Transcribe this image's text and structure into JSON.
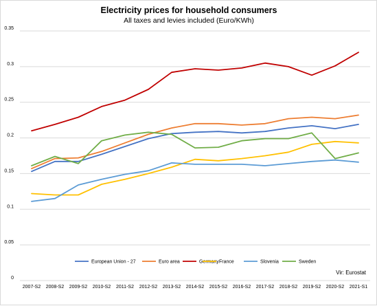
{
  "chart_data": {
    "type": "line",
    "title": "Electricity prices for household consumers",
    "subtitle": "All taxes and levies included (Euro/KWh)",
    "x": [
      "2007-S2",
      "2008-S2",
      "2009-S2",
      "2010-S2",
      "2011-S2",
      "2012-S2",
      "2013-S2",
      "2014-S2",
      "2015-S2",
      "2016-S2",
      "2017-S2",
      "2018-S2",
      "2019-S2",
      "2020-S2",
      "2021-S1"
    ],
    "y_ticks": [
      "0",
      "0.05",
      "0.1",
      "0.15",
      "0.2",
      "0.25",
      "0.3",
      "0.35"
    ],
    "ylim": [
      0,
      0.35
    ],
    "grid": true,
    "legend_position": "bottom",
    "source": "Vir: Eurostat",
    "series": [
      {
        "name": "European Union - 27",
        "color": "#4472c4",
        "values": [
          0.153,
          0.167,
          0.167,
          0.177,
          0.188,
          0.199,
          0.206,
          0.208,
          0.209,
          0.207,
          0.209,
          0.214,
          0.217,
          0.213,
          0.219
        ]
      },
      {
        "name": "Euro area",
        "color": "#ed7d31",
        "values": [
          0.157,
          0.171,
          0.172,
          0.181,
          0.193,
          0.205,
          0.214,
          0.22,
          0.22,
          0.218,
          0.22,
          0.227,
          0.229,
          0.227,
          0.232
        ]
      },
      {
        "name": "Germany",
        "color": "#c00000",
        "values": [
          0.21,
          0.219,
          0.229,
          0.244,
          0.253,
          0.268,
          0.292,
          0.297,
          0.295,
          0.298,
          0.305,
          0.3,
          0.288,
          0.301,
          0.32
        ]
      },
      {
        "name": "France",
        "color": "#ffc000",
        "values": [
          0.122,
          0.12,
          0.12,
          0.135,
          0.142,
          0.15,
          0.159,
          0.17,
          0.168,
          0.171,
          0.175,
          0.18,
          0.191,
          0.195,
          0.193
        ]
      },
      {
        "name": "Slovenia",
        "color": "#5b9bd5",
        "values": [
          0.111,
          0.115,
          0.134,
          0.142,
          0.149,
          0.154,
          0.165,
          0.163,
          0.163,
          0.163,
          0.161,
          0.164,
          0.167,
          0.169,
          0.166
        ]
      },
      {
        "name": "Sweden",
        "color": "#70ad47",
        "values": [
          0.161,
          0.174,
          0.164,
          0.196,
          0.204,
          0.208,
          0.205,
          0.186,
          0.187,
          0.196,
          0.199,
          0.199,
          0.207,
          0.171,
          0.179
        ]
      }
    ]
  }
}
